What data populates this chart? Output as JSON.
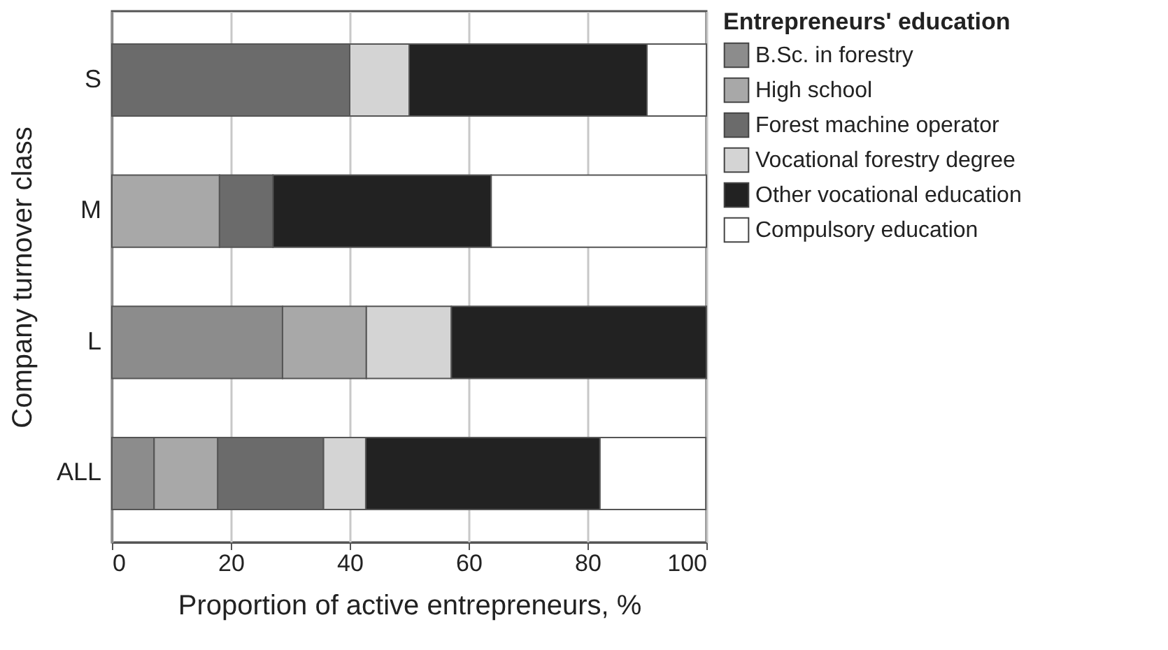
{
  "chart_data": {
    "type": "bar",
    "orientation": "horizontal",
    "stacked": true,
    "xlabel": "Proportion of active entrepreneurs, %",
    "ylabel": "Company turnover class",
    "legend_title": "Entrepreneurs' education",
    "legend": "right",
    "grid": "x",
    "categories": [
      "S",
      "M",
      "L",
      "ALL"
    ],
    "xlim": [
      0,
      100
    ],
    "xticks": [
      0,
      20,
      40,
      60,
      80,
      100
    ],
    "series": [
      {
        "name": "B.Sc. in forestry",
        "color": "#8c8c8c",
        "values": [
          null,
          null,
          28.7,
          7.1
        ]
      },
      {
        "name": "High school",
        "color": "#a8a8a8",
        "values": [
          null,
          18.1,
          14.1,
          10.7
        ]
      },
      {
        "name": "Forest machine operator",
        "color": "#6b6b6b",
        "values": [
          40,
          9,
          null,
          17.8
        ]
      },
      {
        "name": "Vocational forestry degree",
        "color": "#d4d4d4",
        "values": [
          10,
          null,
          14.3,
          7.1
        ]
      },
      {
        "name": "Other vocational education",
        "color": "#222222",
        "values": [
          40,
          36.7,
          42.9,
          39.4
        ]
      },
      {
        "name": "Compulsory education",
        "color": "#ffffff",
        "values": [
          10,
          36.2,
          null,
          17.8
        ]
      }
    ]
  }
}
